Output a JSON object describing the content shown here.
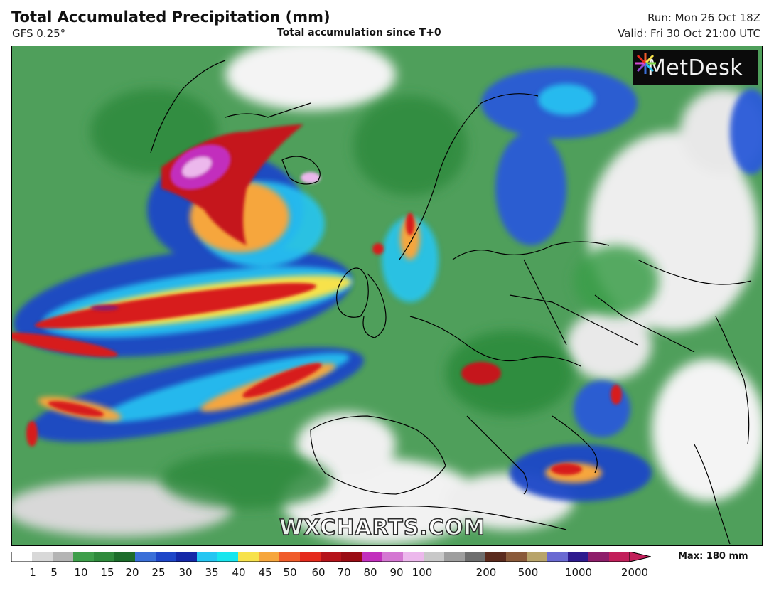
{
  "header": {
    "title": "Total Accumulated Precipitation (mm)",
    "model": "GFS 0.25°",
    "subtitle": "Total accumulation since T+0",
    "run": "Run: Mon 26 Oct 18Z",
    "valid": "Valid: Fri 30 Oct 21:00 UTC"
  },
  "logo": {
    "text": "MetDesk"
  },
  "watermark": "WXCHARTS.COM",
  "legend": {
    "ticks": [
      "1",
      "5",
      "10",
      "15",
      "20",
      "25",
      "30",
      "35",
      "40",
      "45",
      "50",
      "60",
      "70",
      "80",
      "90",
      "100",
      "200",
      "500",
      "1000",
      "2000"
    ],
    "max_label": "Max: 180 mm",
    "colors": [
      "#ffffff",
      "#d8d8d8",
      "#b4b4b4",
      "#3e9e4a",
      "#2f8a3c",
      "#1d6c2b",
      "#3a6fd8",
      "#1e46c8",
      "#1428a8",
      "#25c6f2",
      "#18e6ee",
      "#f7e24b",
      "#f6a63c",
      "#f05c2a",
      "#e52a1c",
      "#b5131a",
      "#9a0c14",
      "#c22fbd",
      "#d477d2",
      "#ecb8ec",
      "#c8c8c8",
      "#9e9e9e",
      "#6e6e6e",
      "#5b2b1e",
      "#8a5a3a",
      "#b8a46a",
      "#6a6ad2",
      "#2e1b8e",
      "#8e1e6a",
      "#c21f5a"
    ]
  },
  "map": {
    "region": "North Atlantic and Europe",
    "colors": {
      "sea_base": "#5ea867",
      "dry": "#ffffff",
      "light_grey": "#cfcfcf",
      "green": "#3e9e4a",
      "dark_green": "#1f7a32",
      "blue": "#1e46c8",
      "cyan": "#25c6f2",
      "yellow": "#f7e24b",
      "orange": "#f6a63c",
      "red": "#d71f1c",
      "dark_red": "#8e0c12",
      "magenta": "#c22fbd",
      "pink": "#ecb8ec"
    }
  }
}
